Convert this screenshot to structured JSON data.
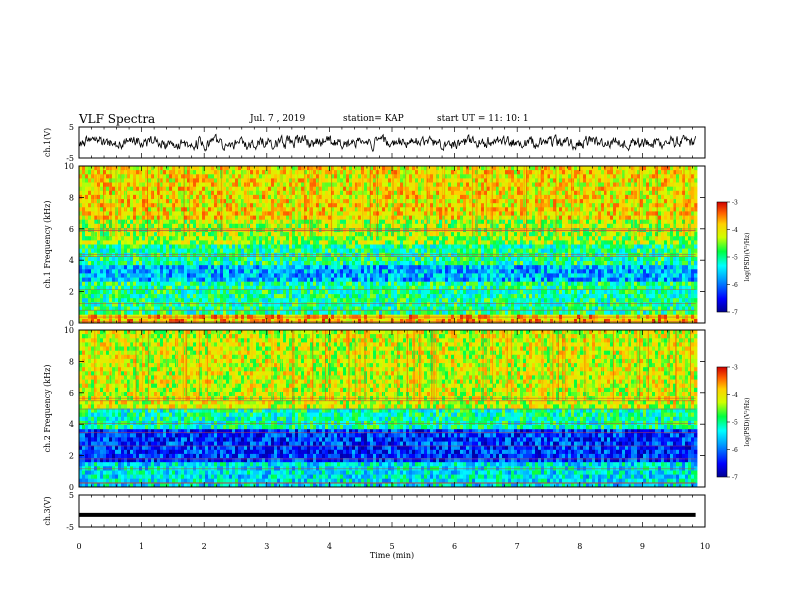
{
  "header": {
    "title": "VLF Spectra",
    "date": "Jul. 7 , 2019",
    "station": "station= KAP",
    "start_ut": "start UT = 11: 10: 1"
  },
  "chart_data": [
    {
      "type": "line",
      "name": "ch1-waveform",
      "ylabel": "ch.1(V)",
      "xlim": [
        0,
        10
      ],
      "ylim": [
        -5,
        5
      ],
      "yticks": [
        "5",
        "-5"
      ],
      "x_data_extent": [
        0,
        9.85
      ],
      "note_values": "noisy waveform, mostly between -3 and 3 V"
    },
    {
      "type": "heatmap",
      "name": "ch1-spectrogram",
      "ylabel": "ch.1 Frequency (kHz)",
      "xlim": [
        0,
        10
      ],
      "ylim": [
        0,
        10
      ],
      "yticks": [
        "0",
        "2",
        "4",
        "6",
        "8",
        "10"
      ],
      "colorbar": {
        "label": "log(PSD)(V²/Hz)",
        "range": [
          -7,
          -3
        ],
        "ticks": [
          "-3",
          "-4",
          "-5",
          "-6",
          "-7"
        ]
      },
      "bands_khz": [
        {
          "from": 0,
          "to": 0.6,
          "level": -3.8
        },
        {
          "from": 0.6,
          "to": 2.7,
          "level": -5.0
        },
        {
          "from": 2.7,
          "to": 3.6,
          "level": -5.7
        },
        {
          "from": 3.6,
          "to": 5.0,
          "level": -5.0
        },
        {
          "from": 5.0,
          "to": 6.5,
          "level": -4.4
        },
        {
          "from": 6.5,
          "to": 10,
          "level": -4.0
        }
      ]
    },
    {
      "type": "heatmap",
      "name": "ch2-spectrogram",
      "ylabel": "ch.2 Frequency (kHz)",
      "xlim": [
        0,
        10
      ],
      "ylim": [
        0,
        10
      ],
      "yticks": [
        "0",
        "2",
        "4",
        "6",
        "8",
        "10"
      ],
      "colorbar": {
        "label": "log(PSD)(V²/Hz)",
        "range": [
          -7,
          -3
        ],
        "ticks": [
          "-3",
          "-4",
          "-5",
          "-6",
          "-7"
        ]
      },
      "bands_khz": [
        {
          "from": 0,
          "to": 1.6,
          "level": -5.4
        },
        {
          "from": 1.6,
          "to": 3.8,
          "level": -6.3
        },
        {
          "from": 3.8,
          "to": 5.0,
          "level": -5.1
        },
        {
          "from": 5.0,
          "to": 10,
          "level": -4.2
        }
      ]
    },
    {
      "type": "line",
      "name": "ch3-waveform",
      "ylabel": "ch.3(V)",
      "xlabel": "Time (min)",
      "xlim": [
        0,
        10
      ],
      "ylim": [
        -5,
        5
      ],
      "yticks": [
        "5",
        "-5"
      ],
      "xticks": [
        "0",
        "1",
        "2",
        "3",
        "4",
        "5",
        "6",
        "7",
        "8",
        "9",
        "10"
      ],
      "x": [
        0,
        9.85
      ],
      "y": [
        -1.2,
        -1.2
      ]
    }
  ]
}
